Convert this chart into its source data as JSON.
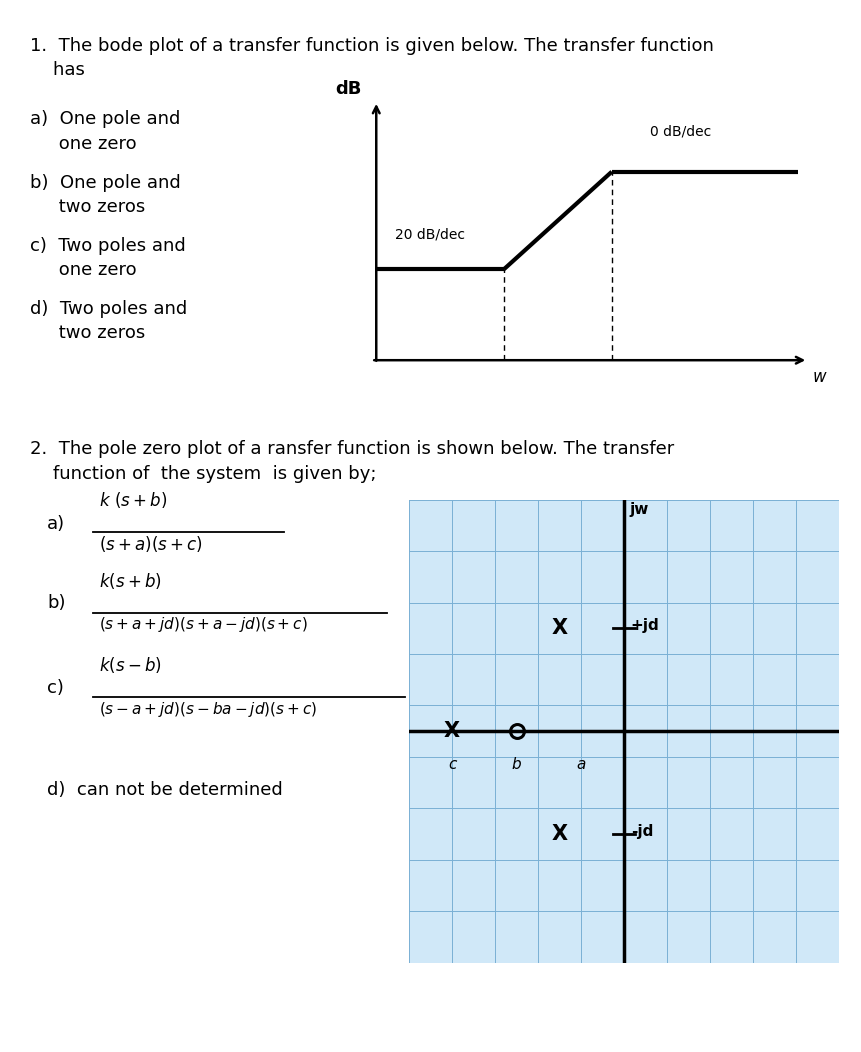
{
  "bg_color": "#ffffff",
  "fig_width": 8.61,
  "fig_height": 10.52,
  "text_color": "#000000",
  "q1_line1": "1.  The bode plot of a transfer function is given below. The transfer function",
  "q1_line2": "    has",
  "q1a_line1": "a)  One pole and",
  "q1a_line2": "     one zero",
  "q1b_line1": "b)  One pole and",
  "q1b_line2": "     two zeros",
  "q1c_line1": "c)  Two poles and",
  "q1c_line2": "     one zero",
  "q1d_line1": "d)  Two poles and",
  "q1d_line2": "     two zeros",
  "q2_line1": "2.  The pole zero plot of a ransfer function is shown below. The transfer",
  "q2_line2": "    function of  the system  is given by;",
  "bode_label_db": "dB",
  "bode_label_w": "w",
  "bode_label_20": "20 dB/dec",
  "bode_label_0": "0 dB/dec",
  "grid_bg": "#d0e8f8",
  "grid_line": "#7ab0d4",
  "jw_label": "jw",
  "jd_label": "+jd",
  "neg_jd_label": "-jd",
  "a_label": "a",
  "b_label": "b",
  "c_label": "c"
}
